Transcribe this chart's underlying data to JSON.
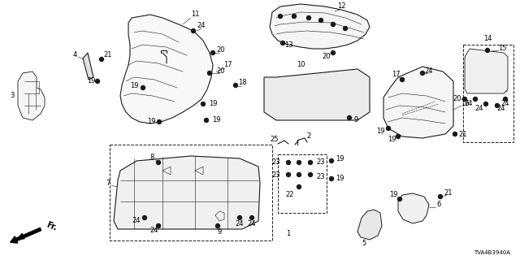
{
  "background_color": "#ffffff",
  "fig_width": 6.4,
  "fig_height": 3.2,
  "dpi": 100,
  "diagram_code": "TVA4B3940A",
  "line_color": "#1a1a1a",
  "lw_main": 0.8,
  "lw_thin": 0.4,
  "fs_label": 6.0,
  "fs_code": 5.0
}
